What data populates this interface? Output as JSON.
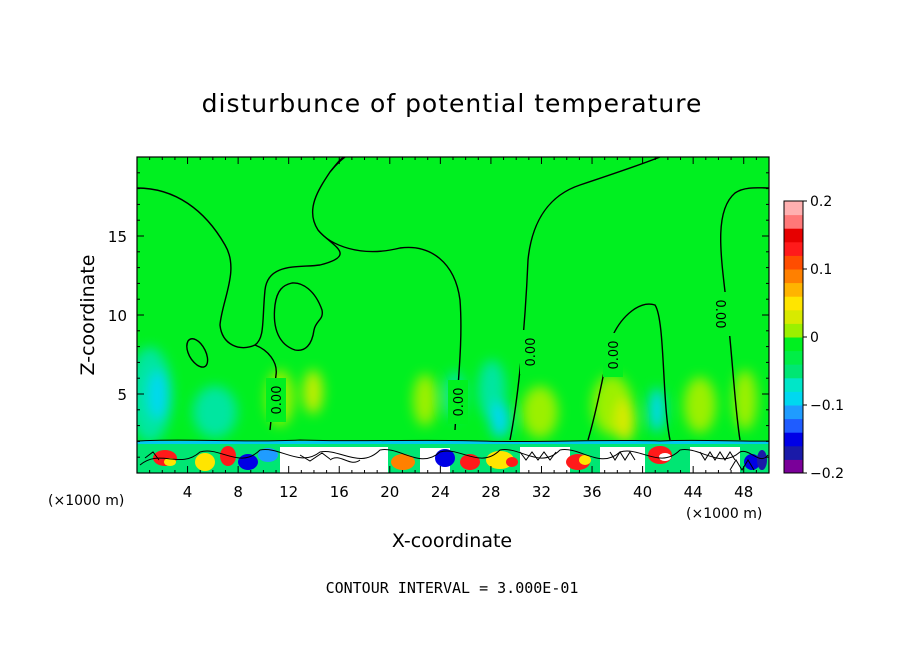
{
  "chart_data": {
    "type": "heatmap",
    "title": "disturbunce of potential temperature",
    "xlabel": "X-coordinate",
    "ylabel": "Z-coordinate",
    "x_unit_left": "(×1000 m)",
    "x_unit_right": "(×1000 m)",
    "xlim": [
      0,
      50
    ],
    "ylim": [
      0,
      20
    ],
    "xticks": [
      "4",
      "8",
      "12",
      "16",
      "20",
      "24",
      "28",
      "32",
      "36",
      "40",
      "44",
      "48"
    ],
    "yticks": [
      "5",
      "10",
      "15"
    ],
    "contour_interval_text": "CONTOUR INTERVAL = 3.000E-01",
    "contour_labels": [
      "0.00",
      "0.00",
      "0.00",
      "0.00",
      "0.00"
    ],
    "colorbar": {
      "min": -0.2,
      "max": 0.2,
      "tick_labels": [
        "0.2",
        "0.1",
        "0",
        "-0.1",
        "-0.2"
      ],
      "colors": [
        "#7a0099",
        "#1a1aa8",
        "#0000e6",
        "#1f5cff",
        "#1f9cff",
        "#00d8f0",
        "#00e6c8",
        "#00e673",
        "#00ee46",
        "#00f020",
        "#9bf000",
        "#d8ea00",
        "#ffe500",
        "#ffb400",
        "#ff8000",
        "#ff4d00",
        "#ff1a1a",
        "#e60000",
        "#ff7878",
        "#ffb0b0"
      ]
    },
    "grid": false,
    "field_background": "#00f020"
  }
}
